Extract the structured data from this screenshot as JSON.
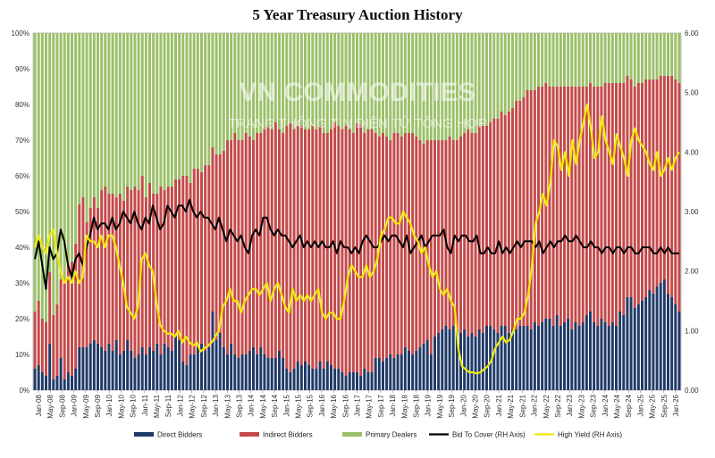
{
  "chart_data": {
    "type": "bar",
    "title": "5 Year Treasury Auction History",
    "ylim_left": [
      0,
      100
    ],
    "ylim_right": [
      0,
      6
    ],
    "left_ticks": [
      "0%",
      "10%",
      "20%",
      "30%",
      "40%",
      "50%",
      "60%",
      "70%",
      "80%",
      "90%",
      "100%"
    ],
    "right_ticks": [
      "0.00",
      "1.00",
      "2.00",
      "3.00",
      "4.00",
      "5.00",
      "6.00"
    ],
    "x_ticks": [
      "Jan-08",
      "May-08",
      "Sep-08",
      "Jan-09",
      "May-09",
      "Sep-09",
      "Jan-10",
      "May-10",
      "Sep-10",
      "Jan-11",
      "May-11",
      "Sep-11",
      "Jan-12",
      "May-12",
      "Sep-12",
      "Jan-13",
      "May-13",
      "Sep-13",
      "Jan-14",
      "May-14",
      "Sep-14",
      "Jan-15",
      "May-15",
      "Sep-15",
      "Jan-16",
      "May-16",
      "Sep-16",
      "Jan-17",
      "May-17",
      "Sep-17",
      "Jan-18",
      "May-18",
      "Sep-18",
      "Jan-19",
      "May-19",
      "Sep-19",
      "Jan-20",
      "May-20",
      "Sep-20",
      "Jan-21",
      "May-21",
      "Sep-21",
      "Jan-22",
      "May-22",
      "Sep-22",
      "Jan-23",
      "May-23",
      "Sep-23",
      "Jan-24",
      "May-24",
      "Sep-24",
      "Jan-25",
      "May-25",
      "Sep-25",
      "Jan-26"
    ],
    "stack_order": [
      "Direct Bidders",
      "Indirect Bidders",
      "Primary Dealers"
    ],
    "series": [
      {
        "name": "Direct Bidders",
        "type": "bar",
        "axis": "left",
        "color": "#1f3a68",
        "values": [
          6,
          7,
          5,
          4,
          13,
          3,
          4,
          9,
          3,
          5,
          4,
          6,
          12,
          12,
          12,
          13,
          14,
          13,
          12,
          11,
          13,
          11,
          14,
          10,
          11,
          14,
          11,
          9,
          10,
          12,
          10,
          12,
          11,
          13,
          10,
          13,
          12,
          11,
          15,
          14,
          8,
          7,
          10,
          10,
          12,
          13,
          11,
          12,
          22,
          14,
          16,
          12,
          10,
          13,
          10,
          9,
          10,
          10,
          11,
          12,
          10,
          12,
          10,
          9,
          9,
          9,
          11,
          9,
          6,
          5,
          6,
          8,
          7,
          8,
          7,
          6,
          6,
          8,
          6,
          8,
          7,
          6,
          6,
          5,
          4,
          5,
          5,
          5,
          4,
          6,
          5,
          5,
          9,
          9,
          8,
          9,
          10,
          9,
          10,
          10,
          12,
          11,
          10,
          11,
          12,
          13,
          14,
          10,
          15,
          16,
          17,
          18,
          17,
          18,
          17,
          16,
          17,
          15,
          16,
          15,
          17,
          16,
          18,
          18,
          17,
          16,
          18,
          18,
          16,
          17,
          17,
          18,
          18,
          18,
          17,
          19,
          18,
          19,
          20,
          20,
          18,
          21,
          18,
          19,
          20,
          17,
          19,
          18,
          19,
          21,
          22,
          19,
          18,
          20,
          19,
          18,
          19,
          18,
          22,
          21,
          26,
          26,
          23,
          24,
          25,
          26,
          28,
          27,
          29,
          30,
          31,
          27,
          26,
          24,
          22
        ]
      },
      {
        "name": "Indirect Bidders",
        "type": "bar",
        "axis": "left",
        "color": "#c44a4a",
        "values": [
          16,
          18,
          15,
          15,
          20,
          18,
          20,
          22,
          28,
          30,
          32,
          35,
          40,
          42,
          35,
          38,
          40,
          38,
          44,
          46,
          42,
          44,
          40,
          45,
          42,
          43,
          45,
          48,
          46,
          48,
          44,
          46,
          44,
          42,
          47,
          43,
          45,
          46,
          44,
          45,
          52,
          53,
          48,
          52,
          50,
          48,
          52,
          51,
          46,
          52,
          50,
          55,
          60,
          57,
          62,
          61,
          60,
          62,
          60,
          58,
          62,
          60,
          63,
          65,
          64,
          66,
          62,
          63,
          68,
          70,
          67,
          66,
          67,
          65,
          66,
          68,
          67,
          66,
          66,
          64,
          66,
          69,
          68,
          68,
          70,
          68,
          67,
          70,
          70,
          66,
          68,
          68,
          63,
          62,
          64,
          62,
          60,
          63,
          62,
          61,
          60,
          61,
          62,
          60,
          58,
          56,
          56,
          60,
          55,
          54,
          53,
          52,
          54,
          52,
          53,
          55,
          55,
          58,
          56,
          57,
          57,
          58,
          56,
          57,
          59,
          60,
          60,
          59,
          62,
          62,
          64,
          63,
          64,
          66,
          67,
          65,
          67,
          66,
          66,
          65,
          67,
          64,
          67,
          66,
          65,
          68,
          66,
          67,
          66,
          64,
          64,
          66,
          67,
          65,
          67,
          68,
          67,
          68,
          64,
          65,
          62,
          61,
          62,
          62,
          61,
          61,
          59,
          60,
          58,
          58,
          57,
          61,
          62,
          63,
          64
        ]
      },
      {
        "name": "Primary Dealers",
        "type": "bar",
        "axis": "left",
        "color": "#9cc06a",
        "note": "remainder to 100%"
      },
      {
        "name": "Bid To Cover (RH Axis)",
        "type": "line",
        "axis": "right",
        "color": "#000000",
        "values": [
          2.2,
          2.5,
          2.1,
          1.7,
          2.4,
          2.2,
          2.3,
          2.7,
          2.5,
          2.1,
          1.9,
          2.2,
          2.3,
          2.1,
          2.4,
          2.6,
          2.9,
          2.7,
          2.8,
          2.8,
          2.7,
          2.9,
          2.7,
          2.8,
          3.0,
          2.9,
          2.8,
          3.0,
          2.8,
          2.7,
          2.9,
          2.8,
          3.1,
          2.9,
          2.7,
          2.8,
          3.1,
          3.0,
          2.9,
          3.1,
          3.1,
          3.0,
          3.2,
          3.0,
          2.9,
          3.0,
          2.9,
          2.9,
          2.8,
          2.7,
          2.9,
          2.7,
          2.5,
          2.7,
          2.6,
          2.5,
          2.6,
          2.4,
          2.3,
          2.6,
          2.7,
          2.6,
          2.9,
          2.9,
          2.7,
          2.6,
          2.7,
          2.6,
          2.6,
          2.5,
          2.4,
          2.5,
          2.6,
          2.4,
          2.5,
          2.4,
          2.5,
          2.4,
          2.5,
          2.4,
          2.4,
          2.5,
          2.3,
          2.5,
          2.4,
          2.4,
          2.3,
          2.4,
          2.3,
          2.5,
          2.6,
          2.5,
          2.4,
          2.4,
          2.5,
          2.6,
          2.5,
          2.6,
          2.6,
          2.5,
          2.4,
          2.6,
          2.3,
          2.4,
          2.5,
          2.6,
          2.4,
          2.5,
          2.6,
          2.6,
          2.6,
          2.7,
          2.4,
          2.3,
          2.6,
          2.5,
          2.6,
          2.6,
          2.5,
          2.5,
          2.6,
          2.3,
          2.3,
          2.4,
          2.3,
          2.3,
          2.5,
          2.3,
          2.4,
          2.3,
          2.4,
          2.5,
          2.4,
          2.5,
          2.5,
          2.5,
          2.4,
          2.5,
          2.3,
          2.4,
          2.5,
          2.4,
          2.5,
          2.5,
          2.6,
          2.5,
          2.5,
          2.6,
          2.5,
          2.4,
          2.4,
          2.5,
          2.4,
          2.4,
          2.3,
          2.4,
          2.4,
          2.3,
          2.4,
          2.4,
          2.3,
          2.4,
          2.4,
          2.3,
          2.3,
          2.4,
          2.4,
          2.4,
          2.3,
          2.3,
          2.4,
          2.3,
          2.4,
          2.3,
          2.3,
          2.3
        ]
      },
      {
        "name": "High Yield (RH Axis)",
        "type": "line",
        "axis": "right",
        "color": "#f2ea0a",
        "values": [
          2.4,
          2.6,
          2.4,
          2.3,
          2.6,
          2.7,
          2.3,
          2.0,
          1.8,
          1.9,
          1.8,
          2.0,
          1.8,
          1.9,
          2.6,
          2.5,
          2.5,
          2.4,
          2.6,
          2.4,
          2.6,
          2.6,
          2.4,
          2.1,
          1.8,
          1.4,
          1.3,
          1.2,
          1.4,
          2.2,
          2.3,
          2.1,
          2.0,
          1.5,
          1.1,
          1.0,
          0.95,
          0.95,
          0.9,
          1.0,
          0.8,
          0.9,
          0.8,
          0.75,
          0.8,
          0.65,
          0.7,
          0.75,
          0.8,
          0.9,
          1.0,
          1.4,
          1.5,
          1.7,
          1.5,
          1.5,
          1.3,
          1.5,
          1.6,
          1.7,
          1.7,
          1.6,
          1.7,
          1.8,
          1.5,
          1.7,
          1.8,
          1.6,
          1.4,
          1.3,
          1.7,
          1.5,
          1.6,
          1.5,
          1.6,
          1.5,
          1.6,
          1.7,
          1.3,
          1.2,
          1.3,
          1.3,
          1.2,
          1.2,
          1.5,
          1.9,
          2.1,
          2.0,
          1.9,
          1.9,
          2.1,
          1.9,
          2.0,
          2.2,
          2.6,
          2.7,
          2.9,
          2.9,
          2.8,
          2.8,
          3.0,
          2.9,
          2.8,
          2.6,
          2.5,
          2.3,
          2.4,
          2.1,
          1.9,
          2.0,
          1.7,
          1.6,
          1.7,
          1.5,
          1.4,
          0.7,
          0.4,
          0.35,
          0.3,
          0.3,
          0.28,
          0.3,
          0.35,
          0.4,
          0.5,
          0.7,
          0.8,
          0.9,
          0.8,
          0.85,
          1.0,
          1.2,
          1.2,
          1.3,
          1.6,
          2.1,
          2.8,
          3.0,
          3.3,
          3.1,
          3.5,
          4.2,
          4.1,
          3.7,
          4.0,
          3.6,
          4.2,
          3.8,
          4.2,
          4.5,
          4.8,
          4.4,
          3.9,
          4.0,
          4.6,
          4.2,
          4.0,
          3.8,
          4.3,
          4.1,
          3.9,
          3.6,
          4.2,
          4.4,
          4.2,
          4.1,
          4.0,
          3.8,
          3.7,
          4.0,
          3.6,
          3.7,
          3.9,
          3.7,
          3.9,
          4.0
        ]
      }
    ],
    "watermark": {
      "line1": "VN COMMODITIES",
      "line2": "TRANG THÔNG TIN ĐIỆN TỬ TỔNG HỢP"
    },
    "legend": [
      {
        "label": "Direct Bidders",
        "color": "#1f3a68",
        "kind": "bar"
      },
      {
        "label": "Indirect Bidders",
        "color": "#c44a4a",
        "kind": "bar"
      },
      {
        "label": "Primary Dealers",
        "color": "#9cc06a",
        "kind": "bar"
      },
      {
        "label": "Bid To Cover (RH Axis)",
        "color": "#000000",
        "kind": "line"
      },
      {
        "label": "High Yield (RH Axis)",
        "color": "#f2ea0a",
        "kind": "line"
      }
    ],
    "legend_position": "bottom",
    "grid": false
  }
}
